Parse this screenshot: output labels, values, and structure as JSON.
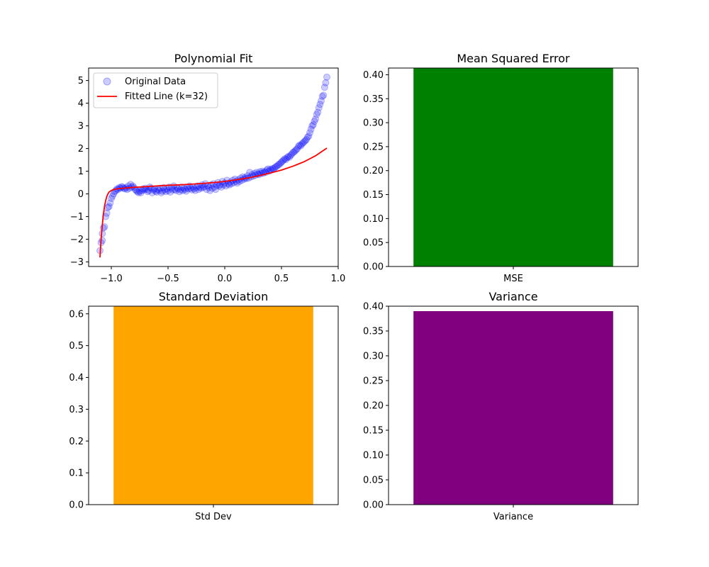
{
  "chart_data": [
    {
      "type": "scatter",
      "title": "Polynomial Fit",
      "xlabel": "",
      "ylabel": "",
      "xlim": [
        -1.2,
        1.0
      ],
      "ylim": [
        -3.2,
        5.55
      ],
      "xticks": [
        -1.0,
        -0.5,
        0.0,
        0.5,
        1.0
      ],
      "xtick_labels": [
        "−1.0",
        "−0.5",
        "0.0",
        "0.5",
        "1.0"
      ],
      "yticks": [
        -3,
        -2,
        -1,
        0,
        1,
        2,
        3,
        4,
        5
      ],
      "ytick_labels": [
        "−3",
        "−2",
        "−1",
        "0",
        "1",
        "2",
        "3",
        "4",
        "5"
      ],
      "legend_position": "top-left",
      "grid": false,
      "series": [
        {
          "name": "Original Data",
          "kind": "scatter",
          "color": "#0000ff",
          "points": [
            [
              -1.1,
              -2.5
            ],
            [
              -1.09,
              -2.15
            ],
            [
              -1.08,
              -2.05
            ],
            [
              -1.08,
              -1.75
            ],
            [
              -1.07,
              -1.5
            ],
            [
              -1.06,
              -1.45
            ],
            [
              -1.05,
              -1.0
            ],
            [
              -1.04,
              -0.85
            ],
            [
              -1.03,
              -0.6
            ],
            [
              -1.02,
              -0.55
            ],
            [
              -1.01,
              -0.4
            ],
            [
              -1.0,
              -0.2
            ],
            [
              -0.99,
              -0.1
            ],
            [
              -0.98,
              0.0
            ],
            [
              -0.97,
              0.1
            ],
            [
              -0.96,
              0.15
            ],
            [
              -0.95,
              0.22
            ],
            [
              -0.94,
              0.2
            ],
            [
              -0.93,
              0.28
            ],
            [
              -0.92,
              0.25
            ],
            [
              -0.91,
              0.32
            ],
            [
              -0.9,
              0.3
            ],
            [
              -0.89,
              0.25
            ],
            [
              -0.88,
              0.22
            ],
            [
              -0.87,
              0.28
            ],
            [
              -0.86,
              0.2
            ],
            [
              -0.85,
              0.35
            ],
            [
              -0.84,
              0.25
            ],
            [
              -0.83,
              0.42
            ],
            [
              -0.82,
              0.3
            ],
            [
              -0.81,
              0.35
            ],
            [
              -0.8,
              0.28
            ],
            [
              -0.79,
              0.2
            ],
            [
              -0.78,
              0.15
            ],
            [
              -0.77,
              0.1
            ],
            [
              -0.76,
              0.05
            ],
            [
              -0.75,
              0.12
            ],
            [
              -0.74,
              0.05
            ],
            [
              -0.73,
              0.15
            ],
            [
              -0.72,
              0.22
            ],
            [
              -0.71,
              0.18
            ],
            [
              -0.7,
              0.25
            ],
            [
              -0.69,
              0.2
            ],
            [
              -0.68,
              0.1
            ],
            [
              -0.67,
              0.15
            ],
            [
              -0.66,
              0.3
            ],
            [
              -0.65,
              0.25
            ],
            [
              -0.64,
              0.05
            ],
            [
              -0.63,
              0.18
            ],
            [
              -0.62,
              0.22
            ],
            [
              -0.61,
              0.12
            ],
            [
              -0.6,
              0.08
            ],
            [
              -0.59,
              0.2
            ],
            [
              -0.58,
              0.15
            ],
            [
              -0.57,
              0.25
            ],
            [
              -0.56,
              0.05
            ],
            [
              -0.55,
              0.12
            ],
            [
              -0.54,
              0.28
            ],
            [
              -0.53,
              0.18
            ],
            [
              -0.52,
              0.1
            ],
            [
              -0.51,
              0.22
            ],
            [
              -0.5,
              0.15
            ],
            [
              -0.49,
              0.3
            ],
            [
              -0.48,
              0.08
            ],
            [
              -0.47,
              0.25
            ],
            [
              -0.46,
              0.18
            ],
            [
              -0.45,
              0.35
            ],
            [
              -0.44,
              0.2
            ],
            [
              -0.43,
              0.15
            ],
            [
              -0.42,
              0.28
            ],
            [
              -0.41,
              0.22
            ],
            [
              -0.4,
              0.1
            ],
            [
              -0.39,
              0.18
            ],
            [
              -0.38,
              0.3
            ],
            [
              -0.37,
              0.15
            ],
            [
              -0.36,
              0.25
            ],
            [
              -0.35,
              0.2
            ],
            [
              -0.34,
              0.12
            ],
            [
              -0.33,
              0.28
            ],
            [
              -0.32,
              0.22
            ],
            [
              -0.31,
              0.35
            ],
            [
              -0.3,
              0.25
            ],
            [
              -0.29,
              0.18
            ],
            [
              -0.28,
              0.3
            ],
            [
              -0.27,
              0.22
            ],
            [
              -0.26,
              0.15
            ],
            [
              -0.25,
              0.28
            ],
            [
              -0.24,
              0.35
            ],
            [
              -0.23,
              0.2
            ],
            [
              -0.22,
              0.3
            ],
            [
              -0.21,
              0.25
            ],
            [
              -0.2,
              0.4
            ],
            [
              -0.19,
              0.28
            ],
            [
              -0.18,
              0.32
            ],
            [
              -0.17,
              0.45
            ],
            [
              -0.16,
              0.2
            ],
            [
              -0.15,
              0.35
            ],
            [
              -0.14,
              0.28
            ],
            [
              -0.13,
              0.15
            ],
            [
              -0.12,
              0.4
            ],
            [
              -0.11,
              0.25
            ],
            [
              -0.1,
              0.45
            ],
            [
              -0.09,
              0.3
            ],
            [
              -0.08,
              0.2
            ],
            [
              -0.07,
              0.38
            ],
            [
              -0.06,
              0.5
            ],
            [
              -0.05,
              0.35
            ],
            [
              -0.04,
              0.42
            ],
            [
              -0.03,
              0.3
            ],
            [
              -0.02,
              0.55
            ],
            [
              -0.01,
              0.4
            ],
            [
              0.0,
              0.48
            ],
            [
              0.01,
              0.35
            ],
            [
              0.02,
              0.6
            ],
            [
              0.03,
              0.45
            ],
            [
              0.04,
              0.4
            ],
            [
              0.05,
              0.52
            ],
            [
              0.06,
              0.45
            ],
            [
              0.07,
              0.6
            ],
            [
              0.08,
              0.5
            ],
            [
              0.09,
              0.65
            ],
            [
              0.1,
              0.55
            ],
            [
              0.11,
              0.48
            ],
            [
              0.12,
              0.62
            ],
            [
              0.13,
              0.55
            ],
            [
              0.14,
              0.7
            ],
            [
              0.15,
              0.6
            ],
            [
              0.16,
              0.75
            ],
            [
              0.17,
              0.65
            ],
            [
              0.18,
              0.72
            ],
            [
              0.19,
              0.68
            ],
            [
              0.2,
              0.8
            ],
            [
              0.21,
              0.7
            ],
            [
              0.22,
              0.95
            ],
            [
              0.23,
              0.75
            ],
            [
              0.24,
              0.85
            ],
            [
              0.25,
              0.78
            ],
            [
              0.26,
              0.9
            ],
            [
              0.27,
              0.82
            ],
            [
              0.28,
              0.95
            ],
            [
              0.29,
              0.88
            ],
            [
              0.3,
              0.85
            ],
            [
              0.31,
              0.98
            ],
            [
              0.32,
              0.9
            ],
            [
              0.33,
              1.0
            ],
            [
              0.34,
              0.92
            ],
            [
              0.35,
              0.98
            ],
            [
              0.36,
              0.95
            ],
            [
              0.37,
              1.05
            ],
            [
              0.38,
              1.1
            ],
            [
              0.39,
              1.0
            ],
            [
              0.4,
              1.08
            ],
            [
              0.41,
              1.05
            ],
            [
              0.42,
              1.12
            ],
            [
              0.43,
              1.1
            ],
            [
              0.44,
              1.15
            ],
            [
              0.45,
              1.2
            ],
            [
              0.46,
              1.22
            ],
            [
              0.47,
              1.28
            ],
            [
              0.48,
              1.3
            ],
            [
              0.49,
              1.35
            ],
            [
              0.5,
              1.4
            ],
            [
              0.51,
              1.45
            ],
            [
              0.52,
              1.5
            ],
            [
              0.53,
              1.55
            ],
            [
              0.54,
              1.52
            ],
            [
              0.55,
              1.6
            ],
            [
              0.56,
              1.65
            ],
            [
              0.57,
              1.62
            ],
            [
              0.58,
              1.7
            ],
            [
              0.59,
              1.75
            ],
            [
              0.6,
              1.82
            ],
            [
              0.61,
              1.85
            ],
            [
              0.62,
              1.9
            ],
            [
              0.63,
              1.95
            ],
            [
              0.64,
              2.0
            ],
            [
              0.65,
              2.1
            ],
            [
              0.66,
              2.15
            ],
            [
              0.67,
              2.12
            ],
            [
              0.68,
              2.2
            ],
            [
              0.69,
              2.25
            ],
            [
              0.7,
              2.3
            ],
            [
              0.71,
              2.35
            ],
            [
              0.72,
              2.4
            ],
            [
              0.73,
              2.5
            ],
            [
              0.74,
              2.55
            ],
            [
              0.75,
              2.7
            ],
            [
              0.76,
              2.85
            ],
            [
              0.77,
              3.0
            ],
            [
              0.78,
              3.05
            ],
            [
              0.79,
              3.2
            ],
            [
              0.8,
              3.3
            ],
            [
              0.81,
              3.5
            ],
            [
              0.82,
              3.6
            ],
            [
              0.83,
              3.8
            ],
            [
              0.84,
              3.95
            ],
            [
              0.85,
              4.1
            ],
            [
              0.86,
              4.3
            ],
            [
              0.87,
              4.35
            ],
            [
              0.88,
              4.7
            ],
            [
              0.89,
              4.9
            ],
            [
              0.9,
              5.15
            ]
          ]
        },
        {
          "name": "Fitted Line (k=32)",
          "kind": "line",
          "color": "#ff0000",
          "points": [
            [
              -1.1,
              -2.8
            ],
            [
              -1.09,
              -2.0
            ],
            [
              -1.08,
              -1.4
            ],
            [
              -1.07,
              -0.9
            ],
            [
              -1.06,
              -0.55
            ],
            [
              -1.05,
              -0.3
            ],
            [
              -1.04,
              -0.12
            ],
            [
              -1.03,
              0.0
            ],
            [
              -1.02,
              0.08
            ],
            [
              -1.0,
              0.15
            ],
            [
              -0.98,
              0.19
            ],
            [
              -0.96,
              0.21
            ],
            [
              -0.94,
              0.23
            ],
            [
              -0.9,
              0.25
            ],
            [
              -0.8,
              0.29
            ],
            [
              -0.7,
              0.32
            ],
            [
              -0.6,
              0.35
            ],
            [
              -0.5,
              0.38
            ],
            [
              -0.4,
              0.4
            ],
            [
              -0.3,
              0.43
            ],
            [
              -0.2,
              0.46
            ],
            [
              -0.1,
              0.5
            ],
            [
              0.0,
              0.55
            ],
            [
              0.1,
              0.62
            ],
            [
              0.2,
              0.7
            ],
            [
              0.3,
              0.8
            ],
            [
              0.4,
              0.92
            ],
            [
              0.5,
              1.05
            ],
            [
              0.6,
              1.22
            ],
            [
              0.65,
              1.32
            ],
            [
              0.7,
              1.42
            ],
            [
              0.75,
              1.55
            ],
            [
              0.8,
              1.68
            ],
            [
              0.85,
              1.85
            ],
            [
              0.9,
              2.02
            ]
          ]
        }
      ]
    },
    {
      "type": "bar",
      "title": "Mean Squared Error",
      "categories": [
        "MSE"
      ],
      "values": [
        0.414
      ],
      "color": "#008000",
      "ylim": [
        0,
        0.414
      ],
      "yticks": [
        0.0,
        0.05,
        0.1,
        0.15,
        0.2,
        0.25,
        0.3,
        0.35,
        0.4
      ],
      "ytick_labels": [
        "0.00",
        "0.05",
        "0.10",
        "0.15",
        "0.20",
        "0.25",
        "0.30",
        "0.35",
        "0.40"
      ],
      "xlabel": "",
      "ylabel": ""
    },
    {
      "type": "bar",
      "title": "Standard Deviation",
      "categories": [
        "Std Dev"
      ],
      "values": [
        0.624
      ],
      "color": "#ffa500",
      "ylim": [
        0,
        0.624
      ],
      "yticks": [
        0.0,
        0.1,
        0.2,
        0.3,
        0.4,
        0.5,
        0.6
      ],
      "ytick_labels": [
        "0.0",
        "0.1",
        "0.2",
        "0.3",
        "0.4",
        "0.5",
        "0.6"
      ],
      "xlabel": "",
      "ylabel": ""
    },
    {
      "type": "bar",
      "title": "Variance",
      "categories": [
        "Variance"
      ],
      "values": [
        0.39
      ],
      "color": "#800080",
      "ylim": [
        0,
        0.4
      ],
      "yticks": [
        0.0,
        0.05,
        0.1,
        0.15,
        0.2,
        0.25,
        0.3,
        0.35,
        0.4
      ],
      "ytick_labels": [
        "0.00",
        "0.05",
        "0.10",
        "0.15",
        "0.20",
        "0.25",
        "0.30",
        "0.35",
        "0.40"
      ],
      "xlabel": "",
      "ylabel": ""
    }
  ]
}
